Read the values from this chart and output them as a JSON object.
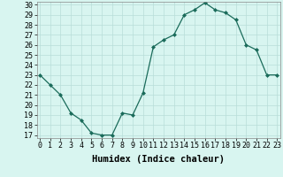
{
  "x": [
    0,
    1,
    2,
    3,
    4,
    5,
    6,
    7,
    8,
    9,
    10,
    11,
    12,
    13,
    14,
    15,
    16,
    17,
    18,
    19,
    20,
    21,
    22,
    23
  ],
  "y": [
    23.0,
    22.0,
    21.0,
    19.2,
    18.5,
    17.2,
    17.0,
    17.0,
    19.2,
    19.0,
    21.2,
    25.8,
    26.5,
    27.0,
    29.0,
    29.5,
    30.2,
    29.5,
    29.2,
    28.5,
    26.0,
    25.5,
    23.0,
    23.0
  ],
  "xlabel": "Humidex (Indice chaleur)",
  "ylim_min": 17,
  "ylim_max": 30,
  "xlim_min": 0,
  "xlim_max": 23,
  "yticks": [
    17,
    18,
    19,
    20,
    21,
    22,
    23,
    24,
    25,
    26,
    27,
    28,
    29,
    30
  ],
  "xticks": [
    0,
    1,
    2,
    3,
    4,
    5,
    6,
    7,
    8,
    9,
    10,
    11,
    12,
    13,
    14,
    15,
    16,
    17,
    18,
    19,
    20,
    21,
    22,
    23
  ],
  "line_color": "#1a6b5a",
  "marker_color": "#1a6b5a",
  "bg_color": "#d8f5f0",
  "grid_color": "#b8ddd8",
  "xlabel_fontsize": 7.5,
  "tick_fontsize": 6.0,
  "fig_width": 3.2,
  "fig_height": 2.0,
  "dpi": 100
}
